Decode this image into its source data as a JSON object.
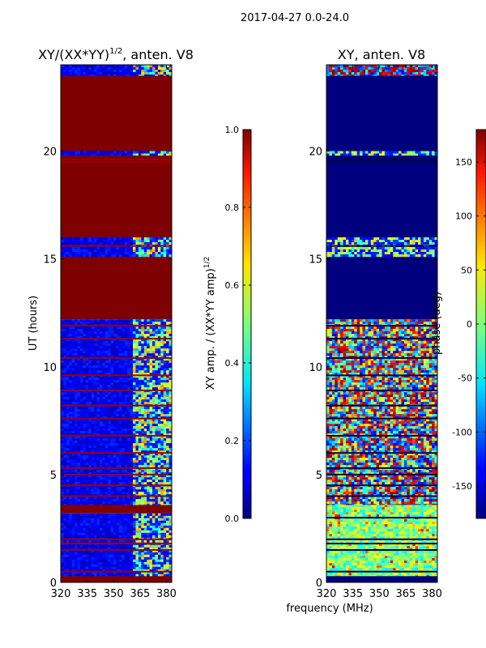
{
  "figure": {
    "suptitle": "2017-04-27 0.0-24.0",
    "shared_xlabel": "frequency (MHz)"
  },
  "chart_data": [
    {
      "type": "heatmap",
      "title_main": "XY/(XX*YY)",
      "title_sup": "1/2",
      "title_tail": ", anten. V8",
      "ylabel": "UT (hours)",
      "xlim": [
        320,
        383
      ],
      "ylim": [
        0,
        24
      ],
      "x_ticks": [
        320,
        335,
        350,
        365,
        380
      ],
      "y_ticks": [
        0,
        5,
        10,
        15,
        20
      ],
      "colormap": "jet",
      "colorbar": {
        "label_main": "XY amp. / (XX*YY amp)",
        "label_sup": "1/2",
        "range": [
          0.0,
          1.0
        ],
        "ticks": [
          "0.0",
          "0.2",
          "0.4",
          "0.6",
          "0.8",
          "1.0"
        ],
        "tick_values": [
          0.0,
          0.2,
          0.4,
          0.6,
          0.8,
          1.0
        ]
      },
      "time_blocks": [
        {
          "t0": 0.0,
          "t1": 0.3,
          "pattern": "sat"
        },
        {
          "t0": 0.3,
          "t1": 3.2,
          "pattern": "low"
        },
        {
          "t0": 3.2,
          "t1": 3.6,
          "pattern": "sat"
        },
        {
          "t0": 3.6,
          "t1": 12.2,
          "pattern": "low"
        },
        {
          "t0": 12.2,
          "t1": 15.1,
          "pattern": "sat"
        },
        {
          "t0": 15.1,
          "t1": 16.0,
          "pattern": "low"
        },
        {
          "t0": 16.0,
          "t1": 19.8,
          "pattern": "sat"
        },
        {
          "t0": 19.8,
          "t1": 20.0,
          "pattern": "low"
        },
        {
          "t0": 20.0,
          "t1": 23.5,
          "pattern": "sat"
        },
        {
          "t0": 23.5,
          "t1": 24.0,
          "pattern": "low"
        }
      ],
      "saturated_lines_ut": [
        0.5,
        1.5,
        1.8,
        2.0,
        4.0,
        4.5,
        5.0,
        5.3,
        6.0,
        6.8,
        7.6,
        8.2,
        8.9,
        9.6,
        10.4,
        11.3,
        11.9,
        15.6,
        19.5,
        19.6
      ]
    },
    {
      "type": "heatmap",
      "title": "XY, anten. V8",
      "xlim": [
        320,
        383
      ],
      "ylim": [
        0,
        24
      ],
      "x_ticks": [
        320,
        335,
        350,
        365,
        380
      ],
      "y_ticks": [
        0,
        5,
        10,
        15,
        20
      ],
      "colormap": "jet",
      "colorbar": {
        "label": "phase (deg)",
        "range": [
          -180,
          180
        ],
        "ticks": [
          "-150",
          "-100",
          "-50",
          "0",
          "50",
          "100",
          "150"
        ],
        "tick_values": [
          -150,
          -100,
          -50,
          0,
          50,
          100,
          150
        ]
      },
      "time_blocks": [
        {
          "t0": 0.0,
          "t1": 0.3,
          "pattern": "dark"
        },
        {
          "t0": 0.3,
          "t1": 3.6,
          "pattern": "phase-green"
        },
        {
          "t0": 3.6,
          "t1": 12.2,
          "pattern": "phase-noisy"
        },
        {
          "t0": 12.2,
          "t1": 15.1,
          "pattern": "dark"
        },
        {
          "t0": 15.1,
          "t1": 16.0,
          "pattern": "phase-band"
        },
        {
          "t0": 16.0,
          "t1": 19.8,
          "pattern": "dark"
        },
        {
          "t0": 19.8,
          "t1": 20.0,
          "pattern": "phase-band"
        },
        {
          "t0": 20.0,
          "t1": 23.5,
          "pattern": "dark"
        },
        {
          "t0": 23.5,
          "t1": 24.0,
          "pattern": "phase-top"
        }
      ],
      "dark_lines_ut": [
        0.5,
        1.5,
        1.8,
        2.0,
        3.0,
        4.0,
        4.5,
        5.0,
        5.3,
        6.0,
        6.8,
        7.6,
        8.2,
        8.9,
        9.6,
        10.4,
        11.3,
        11.9,
        15.6,
        19.5,
        19.6
      ]
    }
  ]
}
